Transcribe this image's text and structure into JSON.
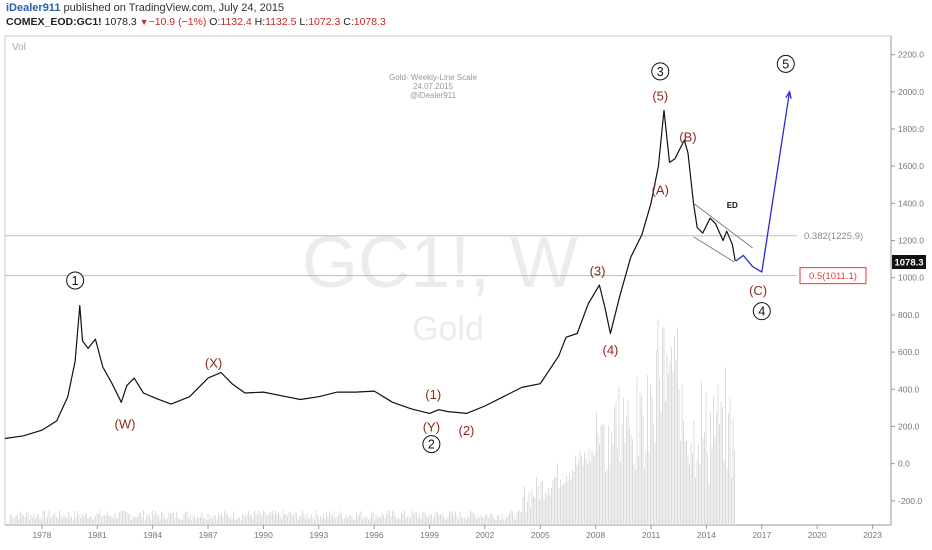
{
  "header": {
    "author": "iDealer911",
    "published": "published on TradingView.com, July 24, 2015",
    "symbol": "COMEX_EOD:GC1!",
    "last": "1078.3",
    "change": "−10.9 (−1%)",
    "o_label": "O:",
    "o_value": "1132.4",
    "h_label": "H:",
    "h_value": "1132.5",
    "l_label": "L:",
    "l_value": "1072.3",
    "c_label": "C:",
    "c_value": "1078.3"
  },
  "pane": {
    "vol_label": "Vol",
    "watermark_symbol": "GC1!, W",
    "watermark_name": "Gold",
    "note_lines": [
      "Gold- Weekly-Line Scale",
      "24.07.2015",
      "@iDealer911"
    ]
  },
  "price_badge": "1078.3",
  "colors": {
    "price_line": "#111111",
    "wave_label": "#8b2a1e",
    "projection": "#2b2bd6",
    "fib_red": "#e53935",
    "axis_text": "#777777",
    "volume": "#dcdcdc",
    "grid": "#c8c8c8"
  },
  "chart_data": {
    "type": "line",
    "title": "Gold- Weekly-Line Scale",
    "xlabel": "",
    "ylabel": "",
    "xlim": [
      1976.0,
      2024.0
    ],
    "ylim": [
      -330,
      2300
    ],
    "x_ticks": [
      "1978",
      "1981",
      "1984",
      "1987",
      "1990",
      "1993",
      "1996",
      "1999",
      "2002",
      "2005",
      "2008",
      "2011",
      "2014",
      "2017",
      "2020",
      "2023"
    ],
    "y_ticks": [
      "2200.0",
      "2000.0",
      "1800.0",
      "1600.0",
      "1400.0",
      "1200.0",
      "1000.0",
      "800.0",
      "600.0",
      "400.0",
      "200.0",
      "0.0",
      "-200.0"
    ],
    "series": [
      {
        "type": "line",
        "x": [
          1976.0,
          1977.0,
          1978.0,
          1978.8,
          1979.4,
          1979.8,
          1980.05,
          1980.2,
          1980.5,
          1980.9,
          1981.3,
          1981.8,
          1982.3,
          1982.6,
          1983.0,
          1983.5,
          1984.2,
          1985.0,
          1986.0,
          1987.0,
          1987.7,
          1988.3,
          1989.0,
          1990.0,
          1991.0,
          1992.0,
          1993.0,
          1994.0,
          1995.0,
          1996.0,
          1997.0,
          1998.0,
          1999.0,
          1999.5,
          2000.0,
          2001.0,
          2002.0,
          2003.0,
          2004.0,
          2005.0,
          2006.0,
          2006.4,
          2007.0,
          2007.6,
          2008.2,
          2008.5,
          2008.8,
          2009.3,
          2009.9,
          2010.5,
          2011.0,
          2011.4,
          2011.7,
          2012.0,
          2012.3,
          2012.8,
          2013.0,
          2013.3,
          2013.5,
          2013.8,
          2014.2,
          2014.5,
          2014.9,
          2015.1,
          2015.4,
          2015.56
        ],
        "values": [
          135,
          150,
          180,
          230,
          360,
          550,
          850,
          660,
          620,
          670,
          520,
          430,
          330,
          420,
          460,
          380,
          350,
          320,
          360,
          460,
          490,
          430,
          380,
          385,
          365,
          345,
          360,
          385,
          385,
          390,
          330,
          295,
          270,
          290,
          280,
          270,
          310,
          360,
          410,
          430,
          580,
          680,
          700,
          860,
          960,
          840,
          700,
          900,
          1110,
          1230,
          1400,
          1600,
          1900,
          1620,
          1640,
          1740,
          1670,
          1400,
          1270,
          1240,
          1320,
          1290,
          1200,
          1250,
          1180,
          1090
        ]
      },
      {
        "name": "Projection",
        "type": "line",
        "x": [
          2015.6,
          2016.0,
          2016.5,
          2017.0,
          2018.5
        ],
        "values": [
          1090,
          1120,
          1060,
          1030,
          2000
        ]
      }
    ],
    "fib_levels": [
      {
        "label": "0.382(1225.9)",
        "value": 1225.9
      },
      {
        "label": "0.5(1011.1)",
        "value": 1011.1
      }
    ],
    "ending_diagonal_label": "ED",
    "wave_labels": [
      {
        "text": "1",
        "circled": true,
        "x": 1979.8,
        "y": 985
      },
      {
        "text": "(W)",
        "x": 1982.5,
        "y": 215
      },
      {
        "text": "(X)",
        "x": 1987.3,
        "y": 545
      },
      {
        "text": "(1)",
        "x": 1999.2,
        "y": 375
      },
      {
        "text": "(Y)",
        "x": 1999.1,
        "y": 200
      },
      {
        "text": "2",
        "circled": true,
        "x": 1999.1,
        "y": 105
      },
      {
        "text": "(2)",
        "x": 2001.0,
        "y": 180
      },
      {
        "text": "(3)",
        "x": 2008.1,
        "y": 1040
      },
      {
        "text": "(4)",
        "x": 2008.8,
        "y": 615
      },
      {
        "text": "(A)",
        "x": 2011.5,
        "y": 1475
      },
      {
        "text": "(5)",
        "x": 2011.5,
        "y": 1980
      },
      {
        "text": "3",
        "circled": true,
        "x": 2011.5,
        "y": 2110
      },
      {
        "text": "(B)",
        "x": 2013.0,
        "y": 1760
      },
      {
        "text": "(C)",
        "x": 2016.8,
        "y": 935
      },
      {
        "text": "4",
        "circled": true,
        "x": 2017.0,
        "y": 820
      },
      {
        "text": "5",
        "circled": true,
        "x": 2018.3,
        "y": 2150
      }
    ]
  }
}
